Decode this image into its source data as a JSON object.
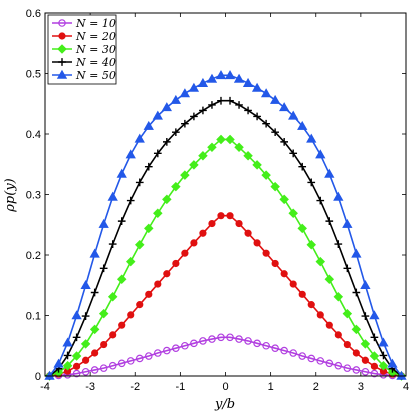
{
  "chart_data": {
    "type": "line",
    "xlabel": "y/b",
    "ylabel": "ρp(y)",
    "xlim": [
      -4,
      4
    ],
    "ylim": [
      0,
      0.6
    ],
    "xticks": [
      "-4",
      "-3",
      "-2",
      "-1",
      "0",
      "1",
      "2",
      "3",
      "4"
    ],
    "yticks": [
      "0",
      "0.1",
      "0.2",
      "0.3",
      "0.4",
      "0.5",
      "0.6"
    ],
    "grid": false,
    "legend_position": "top-left",
    "x": [
      -3.9,
      -3.7,
      -3.5,
      -3.3,
      -3.1,
      -2.9,
      -2.7,
      -2.5,
      -2.3,
      -2.1,
      -1.9,
      -1.7,
      -1.5,
      -1.3,
      -1.1,
      -0.9,
      -0.7,
      -0.5,
      -0.3,
      -0.1,
      0.1,
      0.3,
      0.5,
      0.7,
      0.9,
      1.1,
      1.3,
      1.5,
      1.7,
      1.9,
      2.1,
      2.3,
      2.5,
      2.7,
      2.9,
      3.1,
      3.3,
      3.5,
      3.7,
      3.9
    ],
    "series": [
      {
        "name": "N = 10",
        "color": "#b13fe0",
        "marker": "circle-open",
        "values": [
          0.0,
          0.001,
          0.002,
          0.004,
          0.007,
          0.01,
          0.013,
          0.017,
          0.021,
          0.025,
          0.029,
          0.033,
          0.038,
          0.042,
          0.046,
          0.05,
          0.054,
          0.058,
          0.061,
          0.064,
          0.064,
          0.061,
          0.058,
          0.054,
          0.05,
          0.046,
          0.042,
          0.038,
          0.033,
          0.029,
          0.025,
          0.021,
          0.017,
          0.013,
          0.01,
          0.007,
          0.004,
          0.002,
          0.001,
          0.0
        ]
      },
      {
        "name": "N = 20",
        "color": "#e01010",
        "marker": "circle",
        "values": [
          0.0,
          0.003,
          0.008,
          0.016,
          0.026,
          0.038,
          0.052,
          0.068,
          0.084,
          0.101,
          0.118,
          0.135,
          0.152,
          0.169,
          0.186,
          0.203,
          0.22,
          0.236,
          0.252,
          0.265,
          0.265,
          0.252,
          0.236,
          0.22,
          0.203,
          0.186,
          0.169,
          0.152,
          0.135,
          0.118,
          0.101,
          0.084,
          0.068,
          0.052,
          0.038,
          0.026,
          0.016,
          0.008,
          0.003,
          0.0
        ]
      },
      {
        "name": "N = 30",
        "color": "#44ee1a",
        "marker": "diamond",
        "values": [
          0.0,
          0.006,
          0.017,
          0.033,
          0.053,
          0.077,
          0.103,
          0.131,
          0.16,
          0.189,
          0.217,
          0.244,
          0.269,
          0.292,
          0.313,
          0.332,
          0.349,
          0.364,
          0.378,
          0.391,
          0.391,
          0.378,
          0.364,
          0.349,
          0.332,
          0.313,
          0.292,
          0.269,
          0.244,
          0.217,
          0.189,
          0.16,
          0.131,
          0.103,
          0.077,
          0.053,
          0.033,
          0.017,
          0.006,
          0.0
        ]
      },
      {
        "name": "N = 40",
        "color": "#000000",
        "marker": "plus",
        "values": [
          0.0,
          0.012,
          0.034,
          0.064,
          0.099,
          0.138,
          0.178,
          0.218,
          0.256,
          0.29,
          0.32,
          0.346,
          0.368,
          0.387,
          0.403,
          0.417,
          0.429,
          0.439,
          0.448,
          0.455,
          0.455,
          0.448,
          0.439,
          0.429,
          0.417,
          0.403,
          0.387,
          0.368,
          0.346,
          0.32,
          0.29,
          0.256,
          0.218,
          0.178,
          0.138,
          0.099,
          0.064,
          0.034,
          0.012,
          0.0
        ]
      },
      {
        "name": "N = 50",
        "color": "#2358e8",
        "marker": "triangle",
        "values": [
          0.0,
          0.02,
          0.055,
          0.1,
          0.15,
          0.202,
          0.251,
          0.296,
          0.334,
          0.366,
          0.392,
          0.413,
          0.43,
          0.444,
          0.456,
          0.467,
          0.476,
          0.484,
          0.491,
          0.497,
          0.497,
          0.491,
          0.484,
          0.476,
          0.467,
          0.456,
          0.444,
          0.43,
          0.413,
          0.392,
          0.366,
          0.334,
          0.296,
          0.251,
          0.202,
          0.15,
          0.1,
          0.055,
          0.02,
          0.0
        ]
      }
    ]
  }
}
